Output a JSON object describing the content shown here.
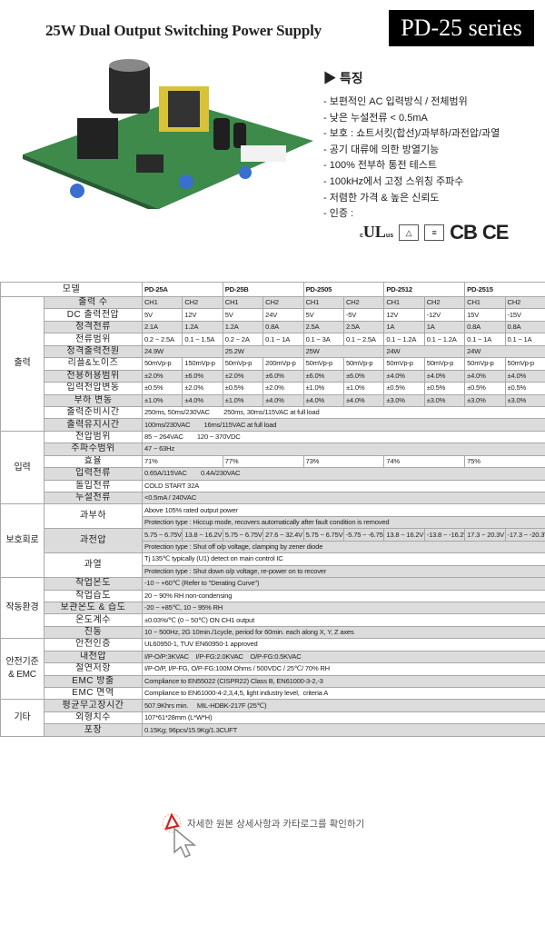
{
  "header": {
    "title": "25W Dual Output Switching Power Supply",
    "series": "PD-25 series"
  },
  "features": {
    "title": "▶ 특징",
    "items": [
      "- 보편적인 AC 입력방식 / 전체범위",
      "- 낮은 누설전류 < 0.5mA",
      "- 보호 : 쇼트서킷(합선)/과부하/과전압/과열",
      "- 공기 대류에 의한 방열기능",
      "- 100% 전부하 통전 테스트",
      "- 100kHz에서 고정 스위칭 주파수",
      "- 저렴한 가격 & 높은 신뢰도",
      "- 인증 :"
    ],
    "certs": [
      "c",
      "UL",
      "us",
      "CB",
      "CE"
    ]
  },
  "spec": {
    "model_label": "모델",
    "models": [
      "PD-25A",
      "PD-25B",
      "PD-2505",
      "PD-2512",
      "PD-2515"
    ],
    "groups": [
      {
        "category": "출력",
        "rows": [
          {
            "label": "출력 수",
            "values": [
              "CH1",
              "CH2",
              "CH1",
              "CH2",
              "CH1",
              "CH2",
              "CH1",
              "CH2",
              "CH1",
              "CH2"
            ]
          },
          {
            "label": "DC 출력전압",
            "values": [
              "5V",
              "12V",
              "5V",
              "24V",
              "5V",
              "-5V",
              "12V",
              "-12V",
              "15V",
              "-15V"
            ]
          },
          {
            "label": "정격전류",
            "values": [
              "2.1A",
              "1.2A",
              "1.2A",
              "0.8A",
              "2.5A",
              "2.5A",
              "1A",
              "1A",
              "0.8A",
              "0.8A"
            ]
          },
          {
            "label": "전류범위",
            "values": [
              "0.2 ~ 2.5A",
              "0.1 ~ 1.5A",
              "0.2 ~ 2A",
              "0.1 ~ 1A",
              "0.1 ~ 3A",
              "0.1 ~ 2.5A",
              "0.1 ~ 1.2A",
              "0.1 ~ 1.2A",
              "0.1 ~ 1A",
              "0.1 ~ 1A"
            ]
          },
          {
            "label": "정격출력전원",
            "values": [
              "24.9W",
              "25.2W",
              "25W",
              "24W",
              "24W"
            ]
          },
          {
            "label": "리플&노이즈",
            "values": [
              "50mVp-p",
              "150mVp-p",
              "50mVp-p",
              "200mVp-p",
              "50mVp-p",
              "50mVp-p",
              "50mVp-p",
              "50mVp-p",
              "50mVp-p",
              "50mVp-p"
            ]
          },
          {
            "label": "전용허용범위",
            "values": [
              "±2.0%",
              "±6.0%",
              "±2.0%",
              "±6.0%",
              "±6.0%",
              "±6.0%",
              "±4.0%",
              "±4.0%",
              "±4.0%",
              "±4.0%"
            ]
          },
          {
            "label": "입력전압변동",
            "values": [
              "±0.5%",
              "±2.0%",
              "±0.5%",
              "±2.0%",
              "±1.0%",
              "±1.0%",
              "±0.5%",
              "±0.5%",
              "±0.5%",
              "±0.5%"
            ]
          },
          {
            "label": "부하 변동",
            "values": [
              "±1.0%",
              "±4.0%",
              "±1.0%",
              "±4.0%",
              "±4.0%",
              "±4.0%",
              "±3.0%",
              "±3.0%",
              "±3.0%",
              "±3.0%"
            ]
          },
          {
            "label": "출력준비시간",
            "values": [
              "250ms, 50ms/230VAC        250ms, 30ms/115VAC at full load"
            ]
          },
          {
            "label": "출력유지시간",
            "values": [
              "100ms/230VAC        16ms/115VAC at full load"
            ]
          }
        ]
      },
      {
        "category": "입력",
        "rows": [
          {
            "label": "전압범위",
            "values": [
              "85 ~ 264VAC        120 ~ 370VDC"
            ]
          },
          {
            "label": "주파수범위",
            "values": [
              "47 ~ 63Hz"
            ]
          },
          {
            "label": "효율",
            "values": [
              "71%",
              "77%",
              "73%",
              "74%",
              "75%"
            ]
          },
          {
            "label": "입력전류",
            "values": [
              "0.65A/115VAC        0.4A/230VAC"
            ]
          },
          {
            "label": "돌입전류",
            "values": [
              "COLD START 32A"
            ]
          },
          {
            "label": "누설전류",
            "values": [
              "<0.5mA / 240VAC"
            ]
          }
        ]
      },
      {
        "category": "보호회로",
        "rows": [
          {
            "label": "과부하",
            "lines": [
              [
                "Above 105% rated output power"
              ],
              [
                "Protection type : Hiccup mode, recovers automatically after fault condition is removed"
              ]
            ]
          },
          {
            "label": "과전압",
            "lines": [
              [
                "5.75 ~ 6.75V",
                "13.8 ~ 16.2V",
                "5.75 ~ 6.75V",
                "27.6 ~ 32.4V",
                "5.75 ~ 6.75V",
                "-5.75 ~ -6.75V",
                "13.8 ~ 16.2V",
                "-13.8 ~ -16.2V",
                "17.3 ~ 20.3V",
                "-17.3 ~ -20.3V"
              ],
              [
                "Protection type : Shut off o/p voltage, clamping by zener diode"
              ]
            ]
          },
          {
            "label": "과열",
            "lines": [
              [
                "Tj 135℃ typically (U1) detect on main control IC"
              ],
              [
                "Protection type : Shut down o/p voltage, re-power on to recover"
              ]
            ]
          }
        ]
      },
      {
        "category": "작동환경",
        "rows": [
          {
            "label": "작업온도",
            "values": [
              "-10 ~ +60℃ (Refer to \"Derating Curve\")"
            ]
          },
          {
            "label": "작업습도",
            "values": [
              "20 ~ 90% RH non-condensing"
            ]
          },
          {
            "label": "보관온도 & 습도",
            "values": [
              "-20 ~ +85℃, 10 ~ 95% RH"
            ]
          },
          {
            "label": "온도계수",
            "values": [
              "±0.03%/℃ (0 ~ 50℃) ON CH1 output"
            ]
          },
          {
            "label": "진동",
            "values": [
              "10 ~ 500Hz, 2G 10min./1cycle, period for 60min. each along X, Y, Z axes"
            ]
          }
        ]
      },
      {
        "category": "안전기준 & EMC",
        "rows": [
          {
            "label": "안전인증",
            "values": [
              "UL60950-1, TUV EN60950-1 approved"
            ]
          },
          {
            "label": "내전압",
            "values": [
              "I/P-O/P:3KVAC    I/P-FG:2.0KVAC    O/P-FG:0.5KVAC"
            ]
          },
          {
            "label": "절연저항",
            "values": [
              "I/P-O/P, I/P-FG, O/P-FG:100M Ohms / 500VDC / 25℃/ 70% RH"
            ]
          },
          {
            "label": "EMC 방출",
            "values": [
              "Compliance to EN55022 (CISPR22) Class B, EN61000-3-2,-3"
            ]
          },
          {
            "label": "EMC 면역",
            "values": [
              "Compliance to EN61000-4-2,3,4,5, light industry level,  criteria A"
            ]
          }
        ]
      },
      {
        "category": "기타",
        "rows": [
          {
            "label": "평균무고장시간",
            "values": [
              "507.9Khrs min.     MIL-HDBK-217F (25℃)"
            ]
          },
          {
            "label": "외형치수",
            "values": [
              "107*61*28mm (L*W*H)"
            ]
          },
          {
            "label": "포장",
            "values": [
              "0.15Kg; 96pcs/15.9Kg/1.3CUFT"
            ]
          }
        ]
      }
    ]
  },
  "footer": {
    "link_text": "자세한 원본 상세사항과 카타로그를 확인하기",
    "icon": "pdf-icon",
    "accent": "#d42020"
  }
}
